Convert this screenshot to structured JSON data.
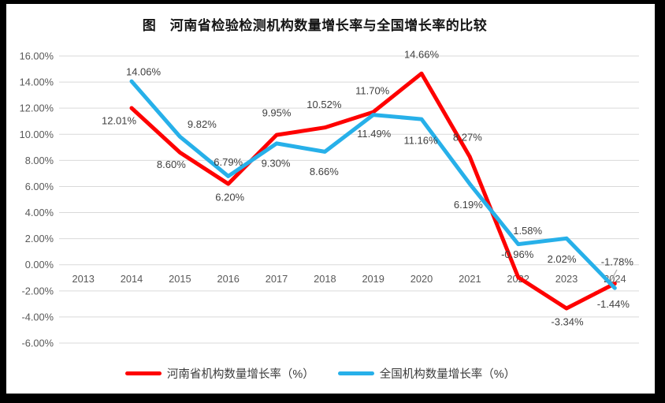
{
  "title": "图　河南省检验检测机构数量增长率与全国增长率的比较",
  "chart_data": {
    "type": "line",
    "categories": [
      "2013",
      "2014",
      "2015",
      "2016",
      "2017",
      "2018",
      "2019",
      "2020",
      "2021",
      "2022",
      "2023",
      "2024"
    ],
    "series": [
      {
        "name": "河南省机构数量增长率（%）",
        "color": "#fe0000",
        "values": [
          null,
          12.01,
          8.6,
          6.2,
          9.95,
          10.52,
          11.7,
          14.66,
          8.27,
          -0.96,
          -3.34,
          -1.44
        ],
        "labels": [
          "",
          "12.01%",
          "8.60%",
          "6.20%",
          "9.95%",
          "10.52%",
          "11.70%",
          "14.66%",
          "8.27%",
          "-0.96%",
          "-3.34%",
          "-1.44%"
        ],
        "label_placements": [
          null,
          [
            -16,
            16
          ],
          [
            -11,
            15
          ],
          [
            2,
            17
          ],
          [
            0,
            -28
          ],
          [
            -1,
            -29
          ],
          [
            -1,
            -27
          ],
          [
            0,
            -24
          ],
          [
            -3,
            -25
          ],
          [
            -1,
            -29
          ],
          [
            1,
            17
          ],
          [
            -2,
            26
          ]
        ]
      },
      {
        "name": "全国机构数量增长率（%）",
        "color": "#27b0e9",
        "values": [
          null,
          14.06,
          9.82,
          6.79,
          9.3,
          8.66,
          11.49,
          11.16,
          6.19,
          1.58,
          2.02,
          -1.78
        ],
        "labels": [
          "",
          "14.06%",
          "9.82%",
          "6.79%",
          "9.30%",
          "8.66%",
          "11.49%",
          "11.16%",
          "6.19%",
          "1.58%",
          "2.02%",
          "-1.78%"
        ],
        "label_placements": [
          null,
          [
            15,
            -12
          ],
          [
            28,
            -16
          ],
          [
            0,
            -18
          ],
          [
            -1,
            25
          ],
          [
            -1,
            25
          ],
          [
            1,
            24
          ],
          [
            -1,
            27
          ],
          [
            -2,
            26
          ],
          [
            12,
            -17
          ],
          [
            -6,
            26
          ],
          [
            3,
            -33
          ]
        ]
      }
    ],
    "ylim": [
      -6,
      16
    ],
    "ytick_step": 2,
    "ytick_labels": [
      "16.00%",
      "14.00%",
      "12.00%",
      "10.00%",
      "8.00%",
      "6.00%",
      "4.00%",
      "2.00%",
      "0.00%",
      "-2.00%",
      "-4.00%",
      "-6.00%"
    ],
    "grid": "horizontal",
    "legend_position": "bottom",
    "gridline_color": "#d9d9d9",
    "axis_label_color": "#595959",
    "data_label_color": "#404040",
    "leader_line_color": "#a6a6a6",
    "line_width": 5
  }
}
